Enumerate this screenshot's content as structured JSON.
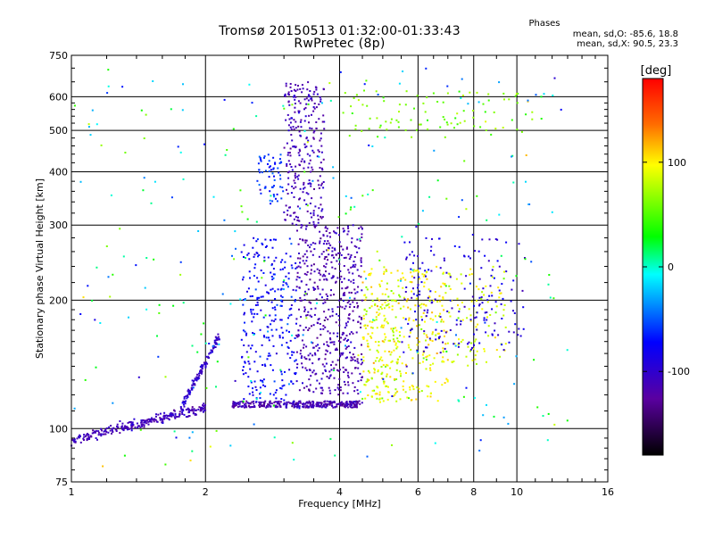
{
  "chart_data": {
    "type": "scatter",
    "title": "Tromsø 20150513 01:32:00-01:33:43",
    "subtitle": "RwPretec (8p)",
    "xlabel": "Frequency [MHz]",
    "ylabel": "Stationary phase Virtual Height [km]",
    "x_scale": "log",
    "y_scale": "log",
    "xlim": [
      1,
      16
    ],
    "ylim": [
      75,
      750
    ],
    "x_ticks": [
      1,
      2,
      4,
      6,
      8,
      10,
      16
    ],
    "y_ticks": [
      75,
      100,
      200,
      300,
      400,
      500,
      600,
      750
    ],
    "grid": true,
    "colorbar": {
      "label": "[deg]",
      "range": [
        -180,
        180
      ],
      "ticks": [
        100,
        0,
        -100
      ]
    },
    "annotation": {
      "title": "Phases",
      "line_o": "mean, sd,O: -85.6, 18.8",
      "line_x": "mean, sd,X: 90.5, 23.3"
    },
    "clusters": [
      {
        "x": [
          1.0,
          2.0
        ],
        "y_start": 94,
        "y_end": 112,
        "phase": -110,
        "count": 260
      },
      {
        "x": [
          1.75,
          2.15
        ],
        "y_start": 110,
        "y_end": 165,
        "phase": -100,
        "count": 120
      },
      {
        "x": [
          2.3,
          4.5
        ],
        "y": [
          112,
          116
        ],
        "phase": -115,
        "count": 320
      },
      {
        "x": [
          2.4,
          3.2
        ],
        "y": [
          115,
          280
        ],
        "phase": -75,
        "count": 260
      },
      {
        "x": [
          2.6,
          3.0
        ],
        "y": [
          340,
          440
        ],
        "phase": -60,
        "count": 60
      },
      {
        "x": [
          3.0,
          3.7
        ],
        "y": [
          300,
          650
        ],
        "phase": -110,
        "count": 260
      },
      {
        "x": [
          3.2,
          4.5
        ],
        "y": [
          120,
          300
        ],
        "phase": -115,
        "count": 520
      },
      {
        "x": [
          4.4,
          5.5
        ],
        "y": [
          115,
          220
        ],
        "phase": 80,
        "count": 120
      },
      {
        "x": [
          4.5,
          7.0
        ],
        "y": [
          115,
          240
        ],
        "phase": 100,
        "count": 240
      },
      {
        "x": [
          6.0,
          9.5
        ],
        "y": [
          140,
          240
        ],
        "phase": 90,
        "count": 120
      },
      {
        "x": [
          5.5,
          10.5
        ],
        "y": [
          150,
          280
        ],
        "phase": -90,
        "count": 180
      },
      {
        "x": [
          4.0,
          11.0
        ],
        "y": [
          480,
          620
        ],
        "phase": 60,
        "count": 90
      },
      {
        "x": [
          1.0,
          13.0
        ],
        "y": [
          80,
          700
        ],
        "phase": 0,
        "count": 300
      }
    ]
  }
}
